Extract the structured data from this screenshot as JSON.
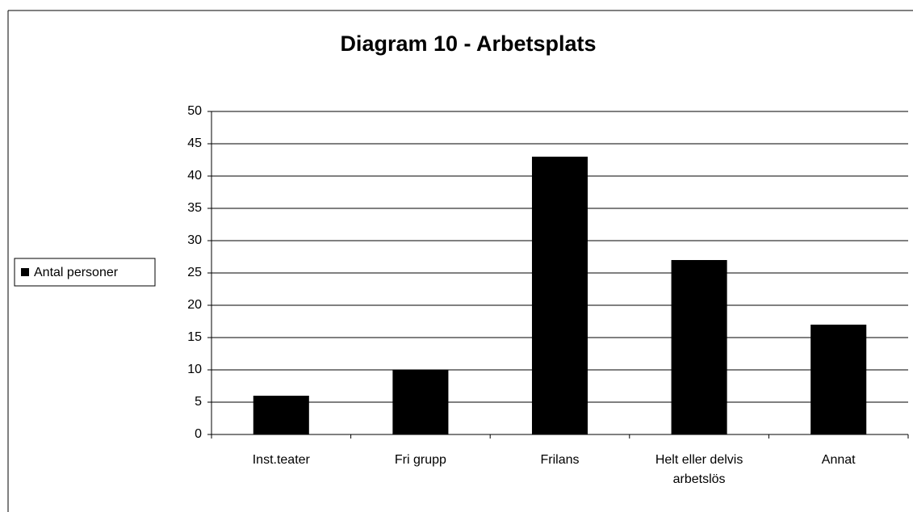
{
  "chart_data": {
    "type": "bar",
    "title": "Diagram 10 - Arbetsplats",
    "categories": [
      "Inst.teater",
      "Fri grupp",
      "Frilans",
      "Helt eller delvis arbetslös",
      "Annat"
    ],
    "series": [
      {
        "name": "Antal personer",
        "color": "#000000",
        "values": [
          6,
          10,
          43,
          27,
          17
        ]
      }
    ],
    "ylim": [
      0,
      50
    ],
    "yticks": [
      0,
      5,
      10,
      15,
      20,
      25,
      30,
      35,
      40,
      45,
      50
    ],
    "grid": true,
    "legend": "left"
  }
}
